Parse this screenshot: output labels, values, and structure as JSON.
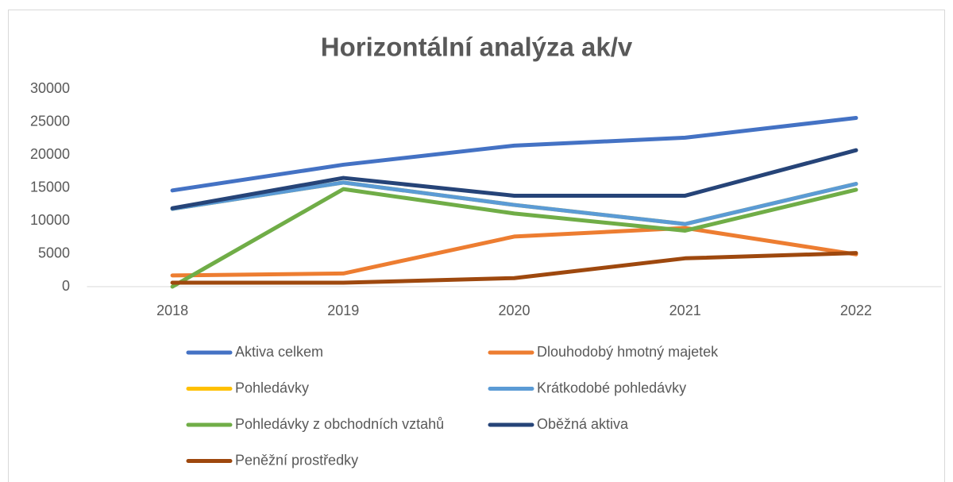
{
  "chart_data": {
    "type": "line",
    "title": "Horizontální analýza ak/v",
    "categories": [
      "2018",
      "2019",
      "2020",
      "2021",
      "2022"
    ],
    "series": [
      {
        "name": "Aktiva celkem",
        "color": "#4472c4",
        "values": [
          14600,
          18500,
          21400,
          22600,
          25600
        ]
      },
      {
        "name": "Dlouhodobý hmotný majetek",
        "color": "#ed7d31",
        "values": [
          1700,
          2000,
          7600,
          8900,
          4900
        ]
      },
      {
        "name": "Pohledávky",
        "color": "#ffc000",
        "values": [
          11800,
          15800,
          12400,
          9500,
          15600
        ]
      },
      {
        "name": "Krátkodobé pohledávky",
        "color": "#5b9bd5",
        "values": [
          11800,
          15800,
          12400,
          9500,
          15600
        ]
      },
      {
        "name": "Pohledávky z obchodních vztahů",
        "color": "#70ad47",
        "values": [
          0,
          14800,
          11100,
          8500,
          14700
        ]
      },
      {
        "name": "Oběžná aktiva",
        "color": "#264478",
        "values": [
          11900,
          16500,
          13800,
          13800,
          20700
        ]
      },
      {
        "name": "Peněžní prostředky",
        "color": "#9e480e",
        "values": [
          600,
          600,
          1300,
          4300,
          5100
        ]
      }
    ],
    "ylim": [
      0,
      30000
    ],
    "yticks": [
      0,
      5000,
      10000,
      15000,
      20000,
      25000,
      30000
    ],
    "grid": false,
    "legend": "bottom"
  }
}
